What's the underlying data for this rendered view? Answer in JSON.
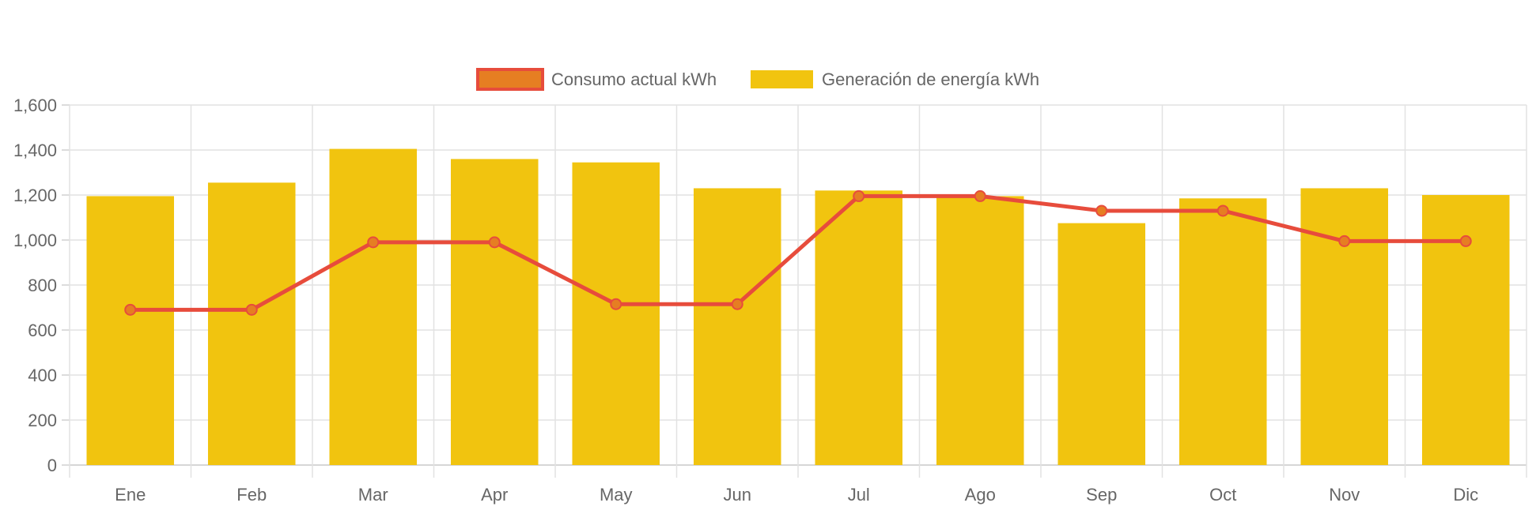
{
  "chart_data": {
    "type": "bar",
    "title": "",
    "xlabel": "",
    "ylabel": "",
    "categories": [
      "Ene",
      "Feb",
      "Mar",
      "Apr",
      "May",
      "Jun",
      "Jul",
      "Ago",
      "Sep",
      "Oct",
      "Nov",
      "Dic"
    ],
    "ylim": [
      0,
      1600
    ],
    "yticks": [
      0,
      200,
      400,
      600,
      800,
      1000,
      1200,
      1400,
      1600
    ],
    "ytick_labels": [
      "0",
      "200",
      "400",
      "600",
      "800",
      "1,000",
      "1,200",
      "1,400",
      "1,600"
    ],
    "grid": true,
    "legend_position": "top-center",
    "series": [
      {
        "name": "Consumo actual kWh",
        "type": "line",
        "color": "#E74C3C",
        "marker_fill": "#E67E22",
        "values": [
          690,
          690,
          990,
          990,
          715,
          715,
          1195,
          1195,
          1130,
          1130,
          995,
          995
        ]
      },
      {
        "name": "Generación de energía kWh",
        "type": "bar",
        "color": "#F1C40F",
        "values": [
          1195,
          1255,
          1405,
          1360,
          1345,
          1230,
          1220,
          1195,
          1075,
          1185,
          1230,
          1200
        ]
      }
    ]
  }
}
